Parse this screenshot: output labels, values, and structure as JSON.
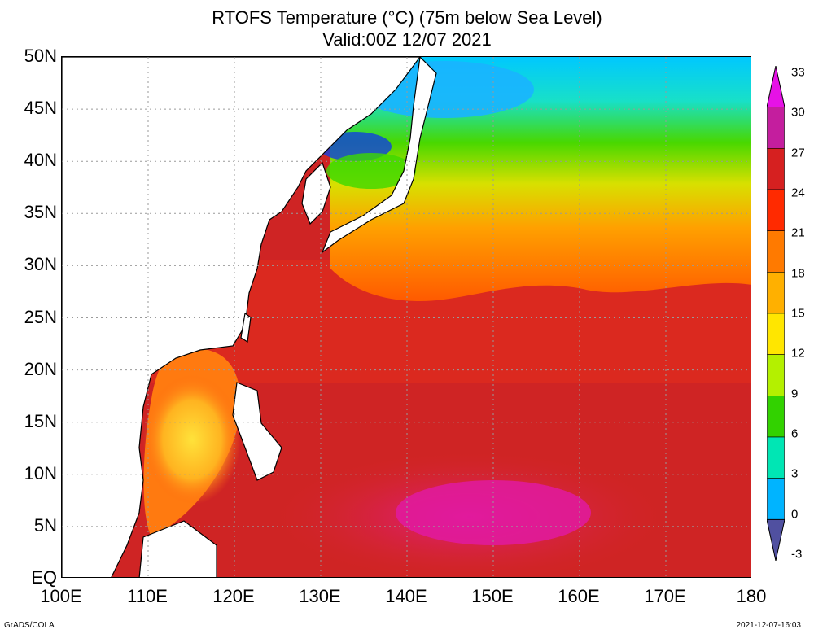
{
  "title": {
    "line1": "RTOFS Temperature (°C) (75m below Sea Level)",
    "line2": "Valid:00Z 12/07 2021"
  },
  "map": {
    "lat_labels": [
      "50N",
      "45N",
      "40N",
      "35N",
      "30N",
      "25N",
      "20N",
      "15N",
      "10N",
      "5N",
      "EQ"
    ],
    "lat_values": [
      50,
      45,
      40,
      35,
      30,
      25,
      20,
      15,
      10,
      5,
      0
    ],
    "lon_labels": [
      "100E",
      "110E",
      "120E",
      "130E",
      "140E",
      "150E",
      "160E",
      "170E",
      "180"
    ],
    "lon_values": [
      100,
      110,
      120,
      130,
      140,
      150,
      160,
      170,
      180
    ],
    "lat_range": [
      0,
      50
    ],
    "lon_range": [
      100,
      180
    ],
    "grid": true,
    "regions": {
      "warm_pool_label": "",
      "note": ""
    }
  },
  "colorbar": {
    "labels": [
      "33",
      "30",
      "27",
      "24",
      "21",
      "18",
      "15",
      "12",
      "9",
      "6",
      "3",
      "0",
      "-3"
    ],
    "values": [
      33,
      30,
      27,
      24,
      21,
      18,
      15,
      12,
      9,
      6,
      3,
      0,
      -3
    ],
    "colors": [
      "#e612e6",
      "#c41e9e",
      "#d62020",
      "#ff2a00",
      "#ff7a00",
      "#ffb000",
      "#ffe600",
      "#b4f000",
      "#32d200",
      "#00e6b4",
      "#00b4ff",
      "#1446ff",
      "#5050a0"
    ]
  },
  "footer": {
    "left": "GrADS/COLA",
    "right": "2021-12-07-16:03"
  }
}
